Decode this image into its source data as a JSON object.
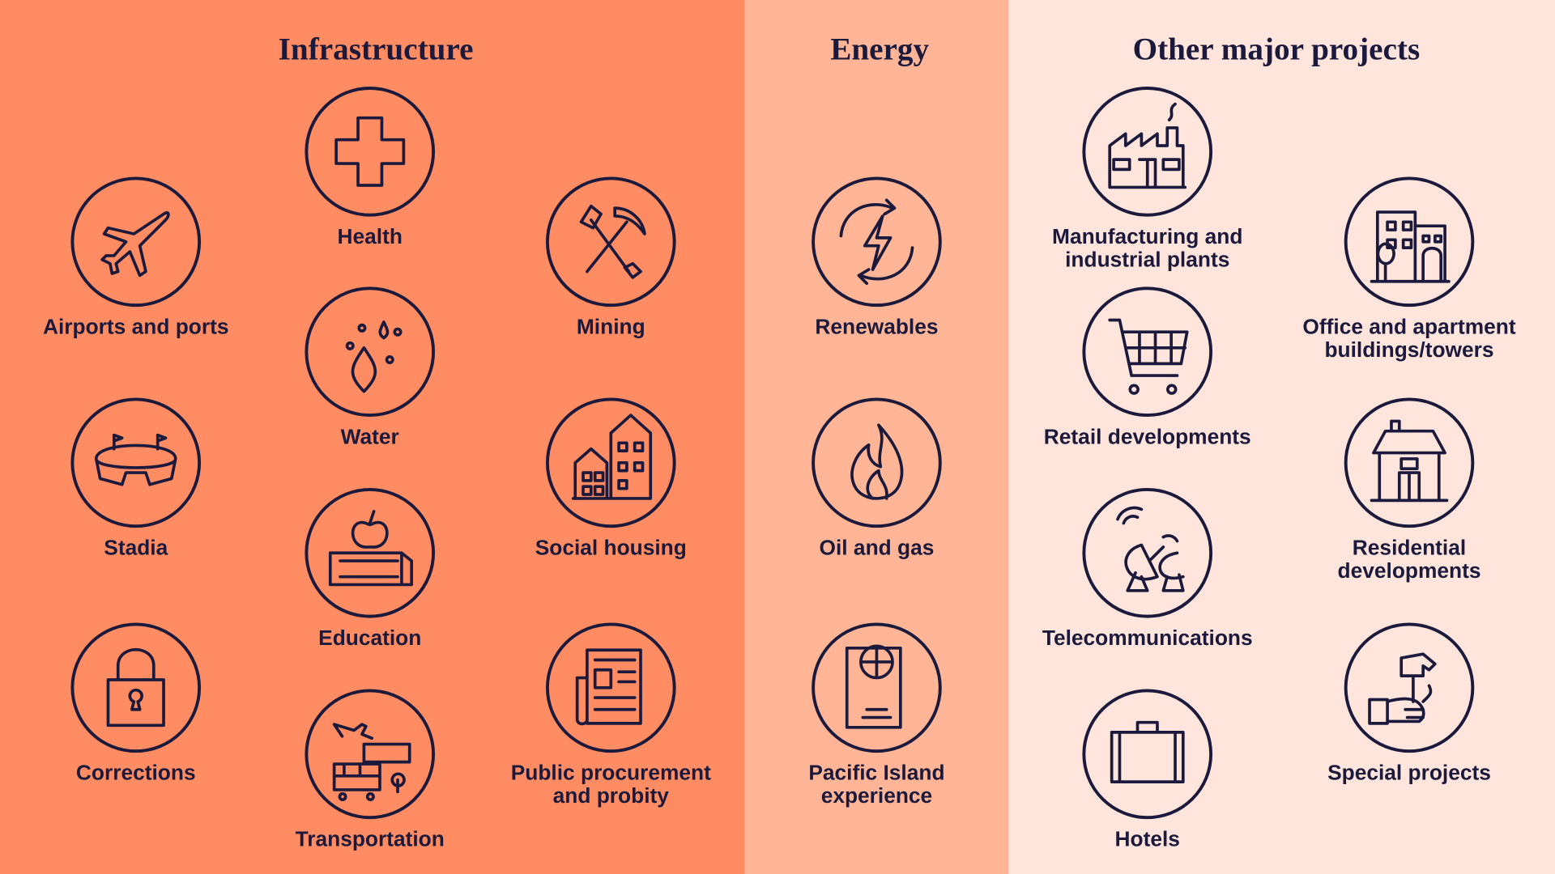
{
  "sections": [
    {
      "title": "Infrastructure",
      "items": [
        {
          "label": [
            "Airports and ports"
          ]
        },
        {
          "label": [
            "Health"
          ]
        },
        {
          "label": [
            "Mining"
          ]
        },
        {
          "label": [
            "Water"
          ]
        },
        {
          "label": [
            "Stadia"
          ]
        },
        {
          "label": [
            "Social housing"
          ]
        },
        {
          "label": [
            "Education"
          ]
        },
        {
          "label": [
            "Corrections"
          ]
        },
        {
          "label": [
            "Public procurement",
            "and probity"
          ]
        },
        {
          "label": [
            "Transportation"
          ]
        }
      ]
    },
    {
      "title": "Energy",
      "items": [
        {
          "label": [
            "Renewables"
          ]
        },
        {
          "label": [
            "Oil and gas"
          ]
        },
        {
          "label": [
            "Pacific Island",
            "experience"
          ]
        }
      ]
    },
    {
      "title": "Other major projects",
      "items": [
        {
          "label": [
            "Manufacturing and",
            "industrial plants"
          ]
        },
        {
          "label": [
            "Office and apartment",
            "buildings/towers"
          ]
        },
        {
          "label": [
            "Retail developments"
          ]
        },
        {
          "label": [
            "Residential",
            "developments"
          ]
        },
        {
          "label": [
            "Telecommunications"
          ]
        },
        {
          "label": [
            "Special projects"
          ]
        },
        {
          "label": [
            "Hotels"
          ]
        }
      ]
    }
  ]
}
